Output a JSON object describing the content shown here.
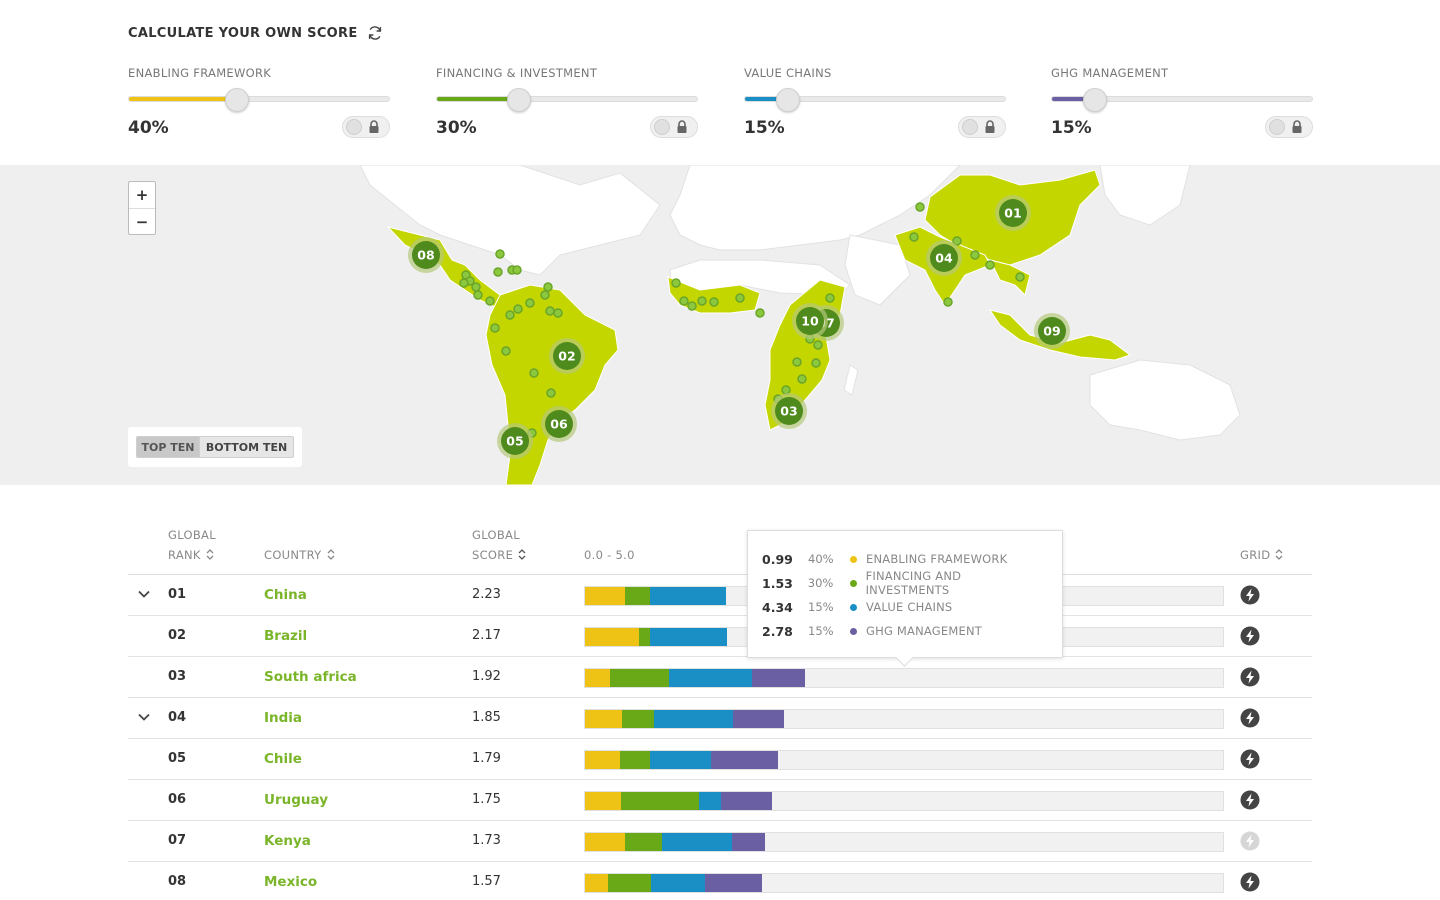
{
  "header": {
    "title": "CALCULATE YOUR OWN SCORE"
  },
  "colors": {
    "yellow": "#efc316",
    "green": "#69a817",
    "blue": "#1a8fc5",
    "purple": "#6a5fa3",
    "country_link": "#7ab52a",
    "map_land": "#c4d600",
    "map_marker": "#4e8a1c"
  },
  "sliders": [
    {
      "label": "ENABLING FRAMEWORK",
      "value_text": "40%",
      "value": 0.4,
      "color": "#efc316"
    },
    {
      "label": "FINANCING & INVESTMENT",
      "value_text": "30%",
      "value": 0.3,
      "color": "#69a817"
    },
    {
      "label": "VALUE CHAINS",
      "value_text": "15%",
      "value": 0.15,
      "color": "#1a8fc5"
    },
    {
      "label": "GHG MANAGEMENT",
      "value_text": "15%",
      "value": 0.15,
      "color": "#6a5fa3"
    }
  ],
  "map": {
    "zoom_in": "+",
    "zoom_out": "−",
    "toggle": {
      "top_ten": "TOP TEN",
      "bottom_ten": "BOTTOM TEN"
    },
    "markers": [
      "01",
      "02",
      "03",
      "04",
      "05",
      "06",
      "07",
      "08",
      "09",
      "10"
    ]
  },
  "table": {
    "headers": {
      "rank_line1": "GLOBAL",
      "rank_line2": "RANK",
      "country": "COUNTRY",
      "score_line1": "GLOBAL",
      "score_line2": "SCORE",
      "range": "0.0 - 5.0",
      "grid": "GRID"
    },
    "rows": [
      {
        "rank": "01",
        "country": "China",
        "score": "2.23",
        "expanded": true,
        "segments": [
          0.0625,
          0.0391,
          0.12,
          0.0
        ]
      },
      {
        "rank": "02",
        "country": "Brazil",
        "score": "2.17",
        "expanded": false,
        "segments": [
          0.085,
          0.0172,
          0.12,
          0.0
        ]
      },
      {
        "rank": "03",
        "country": "South africa",
        "score": "1.92",
        "expanded": false,
        "segments": [
          0.0398,
          0.0922,
          0.13,
          0.0828
        ]
      },
      {
        "rank": "04",
        "country": "India",
        "score": "1.85",
        "expanded": true,
        "segments": [
          0.0586,
          0.05,
          0.1234,
          0.0797
        ]
      },
      {
        "rank": "05",
        "country": "Chile",
        "score": "1.79",
        "expanded": false,
        "segments": [
          0.0555,
          0.0469,
          0.0953,
          0.1047
        ]
      },
      {
        "rank": "06",
        "country": "Uruguay",
        "score": "1.75",
        "expanded": false,
        "segments": [
          0.057,
          0.1219,
          0.0344,
          0.0797
        ]
      },
      {
        "rank": "07",
        "country": "Kenya",
        "score": "1.73",
        "expanded": false,
        "segments": [
          0.0625,
          0.0586,
          0.1094,
          0.0516
        ]
      },
      {
        "rank": "08",
        "country": "Mexico",
        "score": "1.57",
        "expanded": false,
        "segments": [
          0.0359,
          0.0672,
          0.0844,
          0.0906
        ]
      }
    ]
  },
  "tooltip": [
    {
      "value": "0.99",
      "pct": "40%",
      "label": "ENABLING FRAMEWORK",
      "color": "#efc316"
    },
    {
      "value": "1.53",
      "pct": "30%",
      "label": "FINANCING AND INVESTMENTS",
      "color": "#69a817"
    },
    {
      "value": "4.34",
      "pct": "15%",
      "label": "VALUE CHAINS",
      "color": "#1a8fc5"
    },
    {
      "value": "2.78",
      "pct": "15%",
      "label": "GHG MANAGEMENT",
      "color": "#6a5fa3"
    }
  ]
}
